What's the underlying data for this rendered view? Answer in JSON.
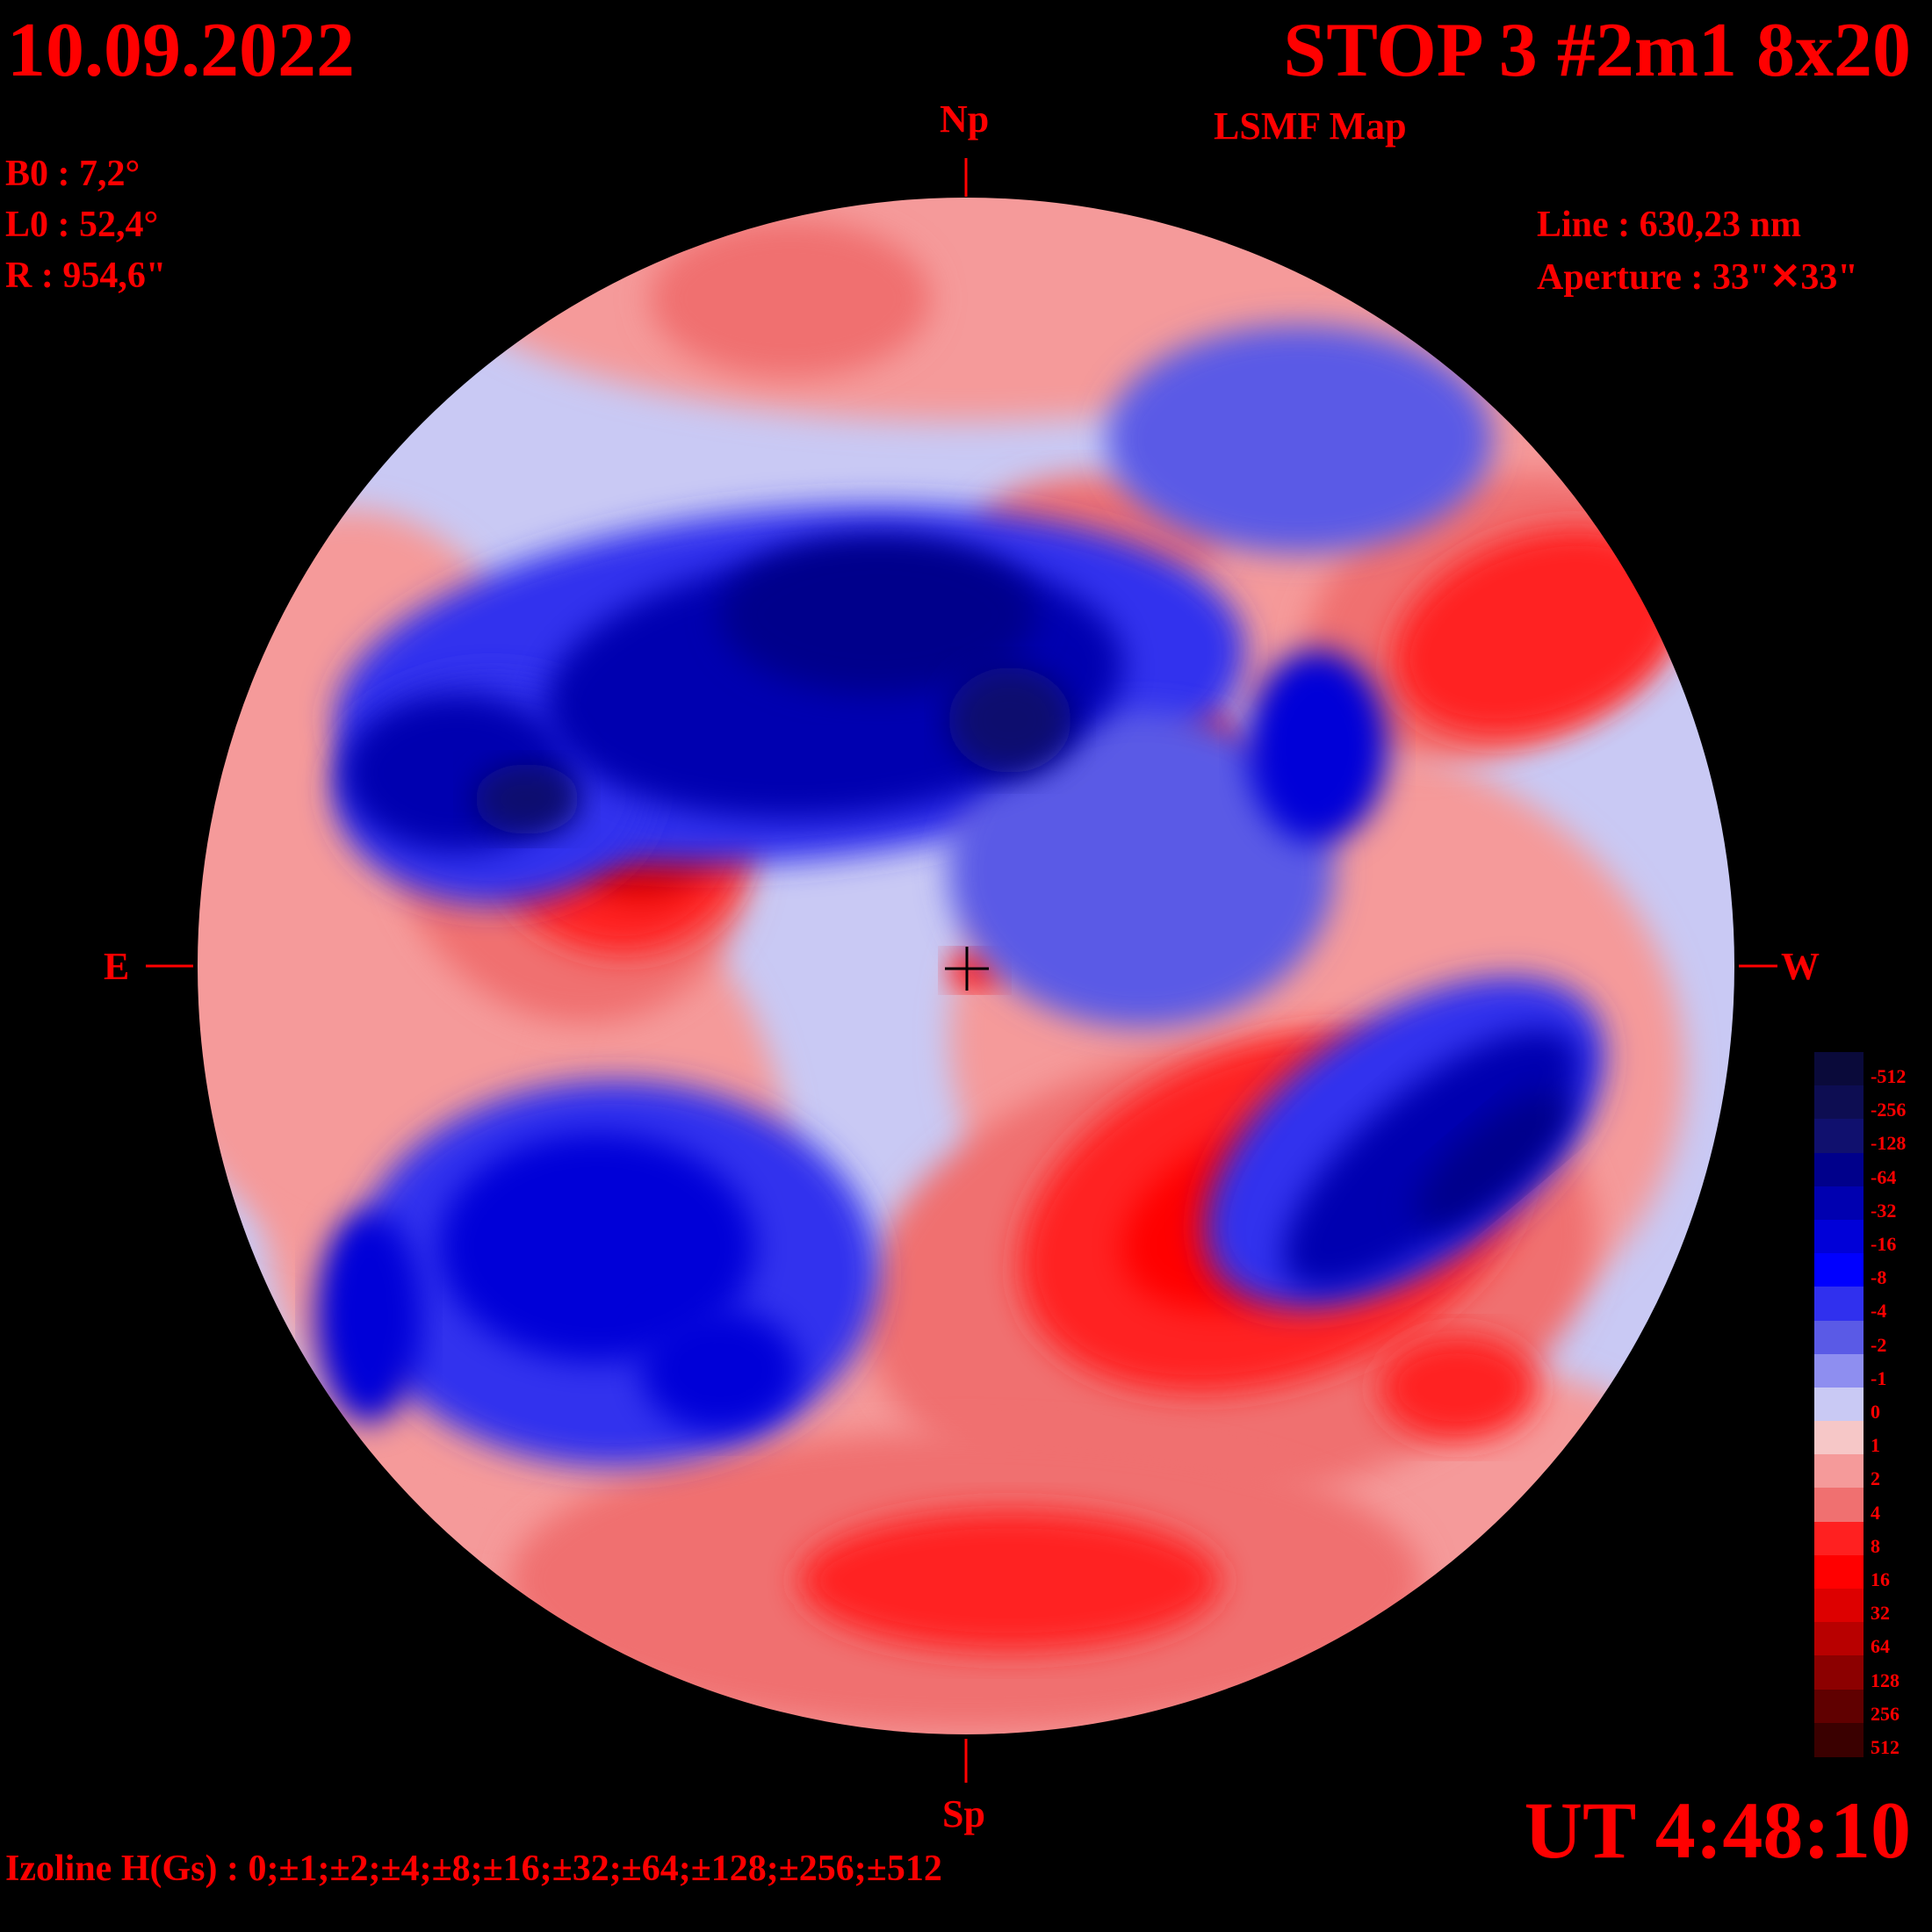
{
  "header": {
    "date": "10.09.2022",
    "title": "STOP 3 #2m1 8x20",
    "subtitle": "LSMF  Map"
  },
  "params_left": {
    "b0": "B0 : 7,2°",
    "l0": "L0 : 52,4°",
    "r": "R  : 954,6\""
  },
  "params_right": {
    "line": "Line :  630,23 nm",
    "aperture": "Aperture : 33\"✕33\""
  },
  "directions": {
    "north": "Np",
    "south": "Sp",
    "east": "E",
    "west": "W"
  },
  "time": "UT 4:48:10",
  "izoline": "Izoline H(Gs) : 0;±1;±2;±4;±8;±16;±32;±64;±128;±256;±512",
  "colors": {
    "background": "#000000",
    "text": "#ff0000",
    "contour": "#ffffff"
  },
  "legend": {
    "labels": [
      "-512",
      "-256",
      "-128",
      "-64",
      "-32",
      "-16",
      "-8",
      "-4",
      "-2",
      "-1",
      "0",
      "1",
      "2",
      "4",
      "8",
      "16",
      "32",
      "64",
      "128",
      "256",
      "512"
    ],
    "colors": [
      "#0a0a3a",
      "#0d0d52",
      "#10106e",
      "#00008b",
      "#0000b0",
      "#0000d8",
      "#0000ff",
      "#3030ee",
      "#5a5ae6",
      "#8e8ef0",
      "#c9c9f4",
      "#f6c7c7",
      "#f59a9a",
      "#f07070",
      "#ff2020",
      "#ff0000",
      "#dd0000",
      "#b80000",
      "#8c0000",
      "#600000",
      "#3a0000"
    ]
  },
  "map_features": {
    "negative_regions": [
      "north-central band",
      "east lobe",
      "southwest",
      "southeast lobe"
    ],
    "positive_regions": [
      "east-center region",
      "north-center small spot",
      "north-center-right spot",
      "southeast large region",
      "south limb band"
    ]
  }
}
